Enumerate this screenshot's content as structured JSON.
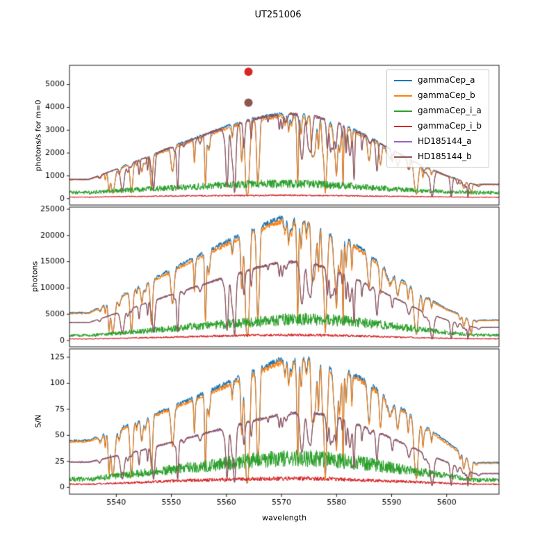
{
  "figure": {
    "title": "UT251006"
  },
  "legend": {
    "entries": [
      {
        "label": "gammaCep_a",
        "color": "#1f77b4"
      },
      {
        "label": "gammaCep_b",
        "color": "#ff7f0e"
      },
      {
        "label": "gammaCep_i_a",
        "color": "#2ca02c"
      },
      {
        "label": "gammaCep_i_b",
        "color": "#d62728"
      },
      {
        "label": "HD185144_a",
        "color": "#9467bd"
      },
      {
        "label": "HD185144_b",
        "color": "#8c564b"
      }
    ]
  },
  "chart_data": {
    "type": "line",
    "title": "UT251006",
    "xlabel": "wavelength",
    "x": [
      5535,
      5540,
      5545,
      5550,
      5555,
      5560,
      5565,
      5570,
      5575,
      5580,
      5585,
      5590,
      5595,
      5600,
      5605
    ],
    "xlim": [
      5531.5,
      5609.5
    ],
    "xticks": [
      5540,
      5550,
      5560,
      5570,
      5580,
      5590,
      5600
    ],
    "grid": false,
    "legend_position": "upper right",
    "line_sets": {
      "A": {
        "seed": 101,
        "n_weak": 62,
        "n_strong": 14,
        "strong_min": 0.55,
        "strong_max": 0.97
      },
      "B": {
        "seed": 202,
        "n_weak": 46,
        "n_strong": 10,
        "strong_min": 0.5,
        "strong_max": 0.95
      }
    },
    "series_style": {
      "gammaCep_a": {
        "color": "#1f77b4",
        "noise": 0.025,
        "lines": "A"
      },
      "gammaCep_b": {
        "color": "#ff7f0e",
        "noise": 0.025,
        "lines": "A"
      },
      "gammaCep_i_a": {
        "color": "#2ca02c",
        "noise": 0.3,
        "lines": null
      },
      "gammaCep_i_b": {
        "color": "#d62728",
        "noise": 0.25,
        "lines": null
      },
      "HD185144_a": {
        "color": "#9467bd",
        "noise": 0.02,
        "lines": "B"
      },
      "HD185144_b": {
        "color": "#8c564b",
        "noise": 0.02,
        "lines": "B"
      }
    },
    "subplots": [
      {
        "ylabel": "photons/s for m=0",
        "ylim": [
          -280,
          5840
        ],
        "yticks": [
          0,
          1000,
          2000,
          3000,
          4000,
          5000
        ],
        "series": [
          {
            "name": "gammaCep_a",
            "values": [
              850,
              1300,
              1780,
              2260,
              2720,
              3160,
              3510,
              3730,
              3690,
              3360,
              2810,
              2160,
              1510,
              1010,
              630
            ]
          },
          {
            "name": "gammaCep_b",
            "values": [
              825,
              1260,
              1725,
              2190,
              2640,
              3065,
              3405,
              3620,
              3580,
              3260,
              2725,
              2095,
              1465,
              980,
              610
            ]
          },
          {
            "name": "gammaCep_i_a",
            "values": [
              270,
              340,
              410,
              470,
              530,
              590,
              635,
              660,
              645,
              585,
              505,
              425,
              355,
              300,
              265
            ]
          },
          {
            "name": "gammaCep_i_b",
            "values": [
              65,
              85,
              100,
              115,
              125,
              135,
              142,
              148,
              143,
              132,
              117,
              102,
              87,
              76,
              62
            ]
          },
          {
            "name": "HD185144_a",
            "values": [
              840,
              1285,
              1760,
              2240,
              2700,
              3140,
              3490,
              3705,
              3665,
              3340,
              2790,
              2145,
              1495,
              1000,
              622
            ]
          },
          {
            "name": "HD185144_b",
            "values": [
              845,
              1292,
              1770,
              2250,
              2710,
              3150,
              3500,
              3715,
              3675,
              3350,
              2800,
              2152,
              1502,
              1005,
              626
            ]
          }
        ],
        "markers": [
          {
            "x": 5564,
            "y": 5560,
            "color": "#d62728"
          },
          {
            "x": 5564,
            "y": 4200,
            "color": "#8c564b"
          }
        ]
      },
      {
        "ylabel": "photons",
        "ylim": [
          -1200,
          25400
        ],
        "yticks": [
          0,
          5000,
          10000,
          15000,
          20000,
          25000
        ],
        "series": [
          {
            "name": "gammaCep_a",
            "values": [
              5300,
              8000,
              10800,
              13500,
              16200,
              18800,
              21300,
              23400,
              23000,
              20500,
              17100,
              13000,
              9100,
              6000,
              3900
            ]
          },
          {
            "name": "gammaCep_b",
            "values": [
              5140,
              7760,
              10480,
              13100,
              15700,
              18240,
              20660,
              22700,
              22300,
              19890,
              16590,
              12610,
              8830,
              5820,
              3780
            ]
          },
          {
            "name": "gammaCep_i_a",
            "values": [
              950,
              1350,
              1800,
              2250,
              2700,
              3100,
              3500,
              3950,
              4050,
              3850,
              3350,
              2750,
              2150,
              1550,
              1050
            ]
          },
          {
            "name": "gammaCep_i_b",
            "values": [
              290,
              410,
              530,
              650,
              770,
              890,
              990,
              1070,
              1050,
              960,
              830,
              680,
              530,
              410,
              310
            ]
          },
          {
            "name": "HD185144_a",
            "values": [
              3400,
              5150,
              6950,
              8700,
              10400,
              12100,
              13700,
              15000,
              14800,
              13200,
              11000,
              8350,
              5850,
              3900,
              2500
            ]
          },
          {
            "name": "HD185144_b",
            "values": [
              3430,
              5180,
              6990,
              8740,
              10440,
              12140,
              13740,
              15050,
              14840,
              13240,
              11040,
              8380,
              5870,
              3920,
              2520
            ]
          }
        ],
        "markers": []
      },
      {
        "ylabel": "S/N",
        "ylim": [
          -6.5,
          133
        ],
        "yticks": [
          0,
          25,
          50,
          75,
          100,
          125
        ],
        "series": [
          {
            "name": "gammaCep_a",
            "values": [
              45,
              56,
              66,
              77,
              88,
              100,
              112,
              123,
              125,
              117,
              103,
              84,
              63,
              44,
              24
            ]
          },
          {
            "name": "gammaCep_b",
            "values": [
              44,
              54,
              64,
              75,
              86,
              97,
              109,
              120,
              122,
              114,
              100,
              82,
              61,
              42,
              23
            ]
          },
          {
            "name": "gammaCep_i_a",
            "values": [
              8,
              11,
              14,
              17,
              20,
              23,
              26,
              28,
              28,
              26,
              23,
              19,
              15,
              11,
              7
            ]
          },
          {
            "name": "gammaCep_i_b",
            "values": [
              3,
              4,
              5,
              6,
              7,
              7.5,
              8,
              8.5,
              8.5,
              8,
              7,
              6,
              5,
              4,
              3
            ]
          },
          {
            "name": "HD185144_a",
            "values": [
              24,
              30,
              36,
              43,
              50,
              57,
              64,
              70,
              72,
              67,
              58,
              47,
              35,
              24,
              13
            ]
          },
          {
            "name": "HD185144_b",
            "values": [
              24.5,
              30.5,
              36.5,
              43.5,
              50.5,
              57.5,
              64.5,
              70.5,
              72.5,
              67.5,
              58.5,
              47.5,
              35.5,
              24.5,
              13.5
            ]
          }
        ],
        "markers": []
      }
    ]
  }
}
